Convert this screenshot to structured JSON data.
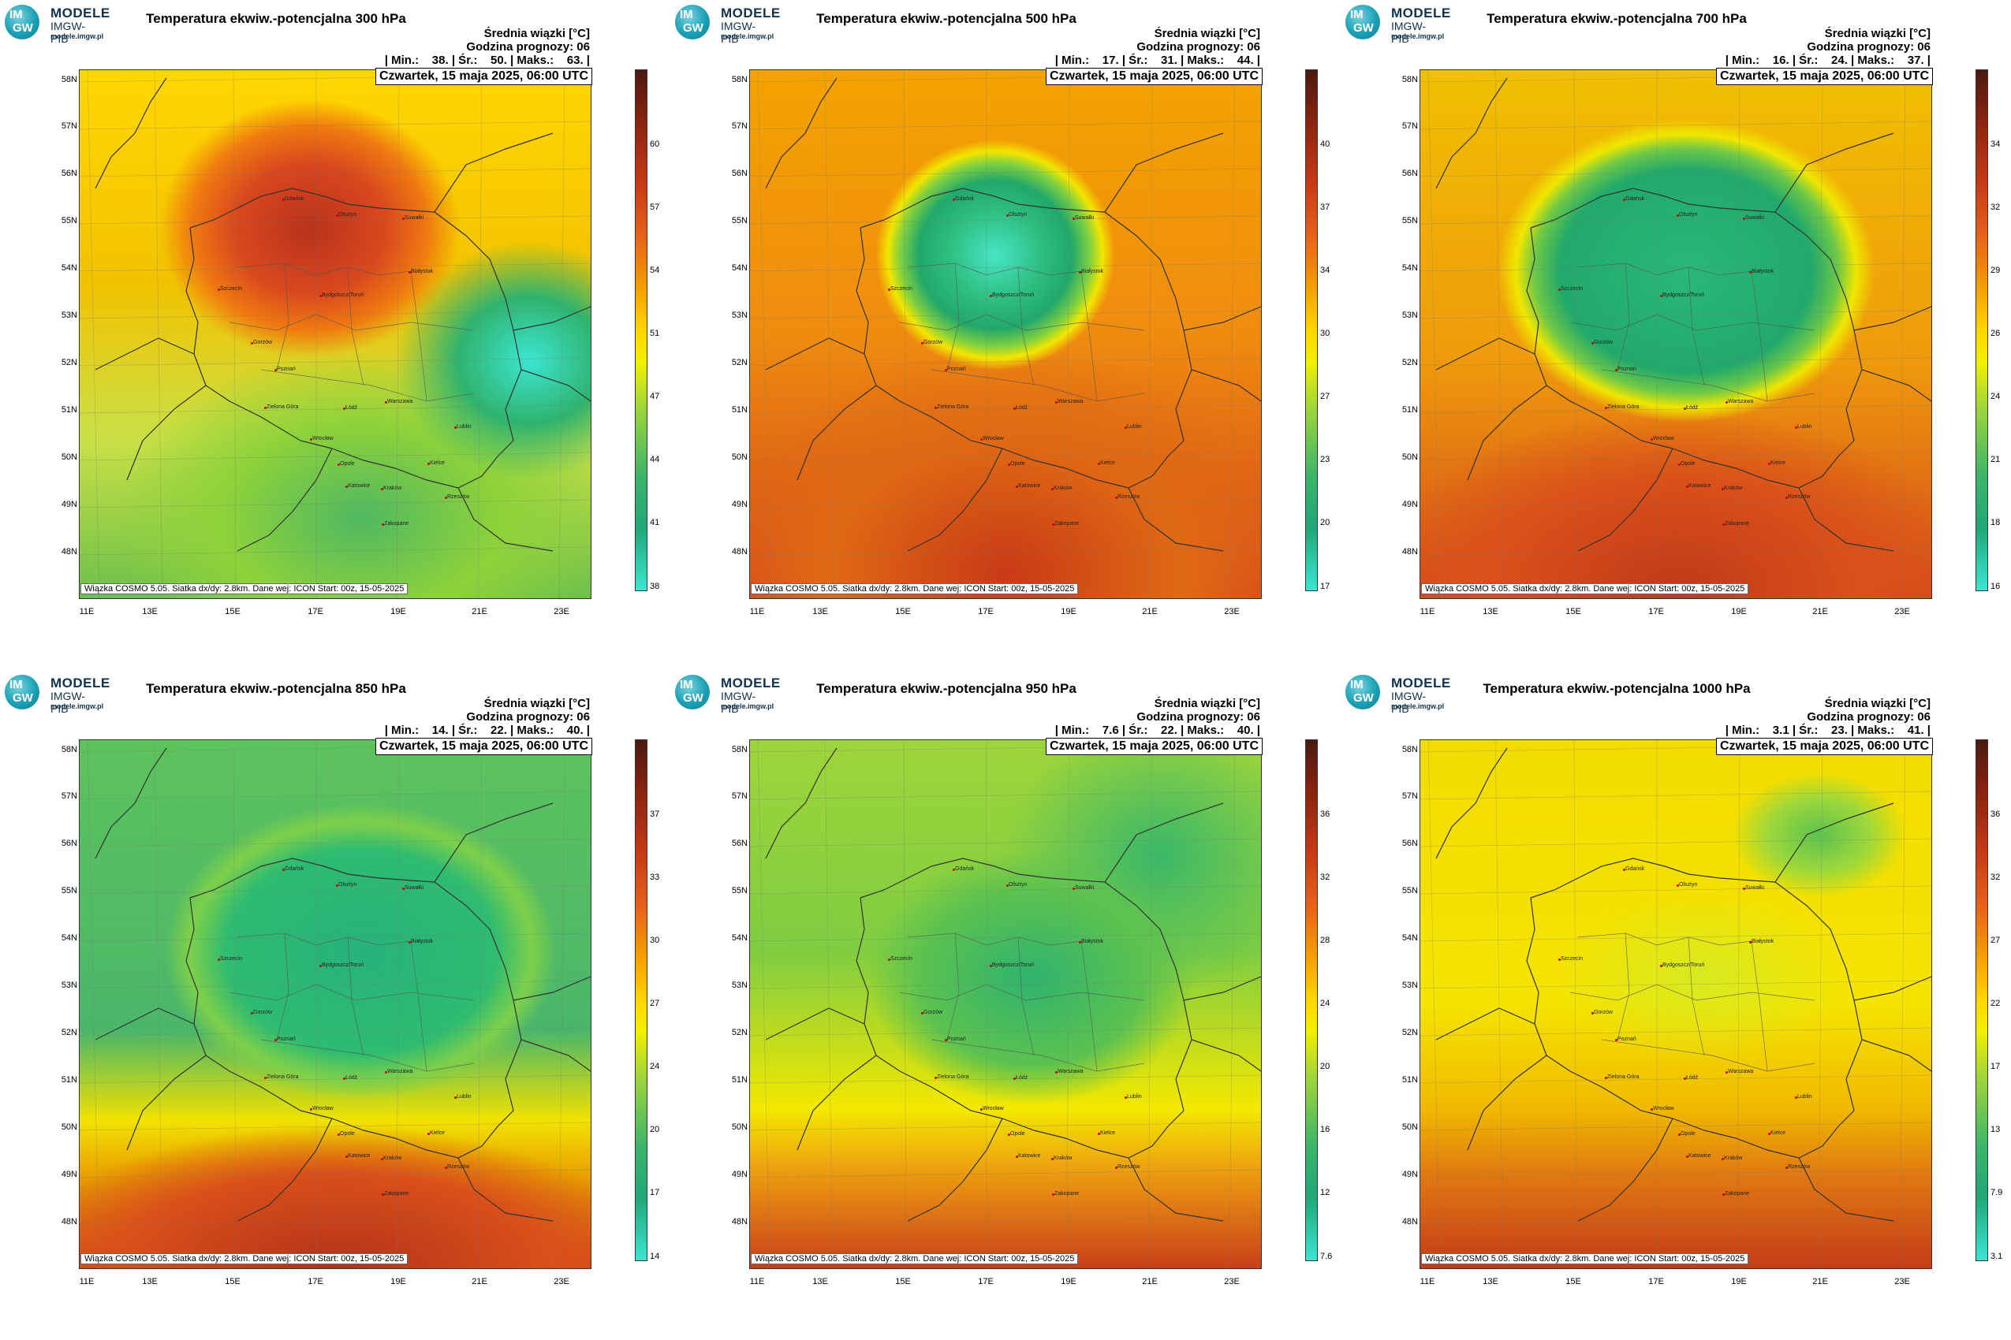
{
  "logo": {
    "line1": "MODELE",
    "line2": "IMGW-PIB",
    "line3": "modele.imgw.pl",
    "mark_top": "IM",
    "mark_bottom": "GW"
  },
  "common": {
    "mean_label": "Średnia wiązki [°C]",
    "forecast_hour_label": "Godzina prognozy: 06",
    "date": "Czwartek, 15 maja 2025, 06:00 UTC",
    "footnote": "Wiązka COSMO 5.05. Siatka dx/dy: 2.8km. Dane wej: ICON Start: 00z, 15-05-2025",
    "lat_labels": [
      "58N",
      "57N",
      "56N",
      "55N",
      "54N",
      "53N",
      "52N",
      "51N",
      "50N",
      "49N",
      "48N"
    ],
    "lon_labels": [
      "11E",
      "13E",
      "15E",
      "17E",
      "19E",
      "21E",
      "23E"
    ],
    "cities": [
      "Gdańsk",
      "Olsztyn",
      "Suwałki",
      "Szczecin",
      "Bydgoszcz/Toruń",
      "Białystok",
      "Gorzów",
      "Poznań",
      "Warszawa",
      "Zielona Góra",
      "Łódź",
      "Lublin",
      "Wrocław",
      "Opole",
      "Kielce",
      "Katowice",
      "Kraków",
      "Rzeszów",
      "Zakopane"
    ]
  },
  "panels": [
    {
      "title": "Temperatura ekwiw.-potencjalna 300 hPa",
      "stats": "| Min.:    38. | Śr.:    50. | Maks.:    63. |",
      "ticks": [
        "60",
        "57",
        "54",
        "51",
        "47",
        "44",
        "41",
        "38"
      ]
    },
    {
      "title": "Temperatura ekwiw.-potencjalna 500 hPa",
      "stats": "| Min.:    17. | Śr.:    31. | Maks.:    44. |",
      "ticks": [
        "40",
        "37",
        "34",
        "30",
        "27",
        "23",
        "20",
        "17"
      ]
    },
    {
      "title": "Temperatura ekwiw.-potencjalna 700 hPa",
      "stats": "| Min.:    16. | Śr.:    24. | Maks.:    37. |",
      "ticks": [
        "34",
        "32",
        "29",
        "26",
        "24",
        "21",
        "18",
        "16"
      ]
    },
    {
      "title": "Temperatura ekwiw.-potencjalna 850 hPa",
      "stats": "| Min.:    14. | Śr.:    22. | Maks.:    40. |",
      "ticks": [
        "37",
        "33",
        "30",
        "27",
        "24",
        "20",
        "17",
        "14"
      ]
    },
    {
      "title": "Temperatura ekwiw.-potencjalna 950 hPa",
      "stats": "| Min.:    7.6 | Śr.:    22. | Maks.:    40. |",
      "ticks": [
        "36",
        "32",
        "28",
        "24",
        "20",
        "16",
        "12",
        "7.6"
      ]
    },
    {
      "title": "Temperatura ekwiw.-potencjalna 1000 hPa",
      "stats": "| Min.:    3.1 | Śr.:    23. | Maks.:    41. |",
      "ticks": [
        "36",
        "32",
        "27",
        "22",
        "17",
        "13",
        "7.9",
        "3.1"
      ]
    }
  ],
  "colors": {
    "cold": "#3ce6d2",
    "green": "#2fb36e",
    "yellow": "#fff200",
    "orange": "#f5a000",
    "red": "#d9401a",
    "darkred": "#6b1a0c"
  }
}
